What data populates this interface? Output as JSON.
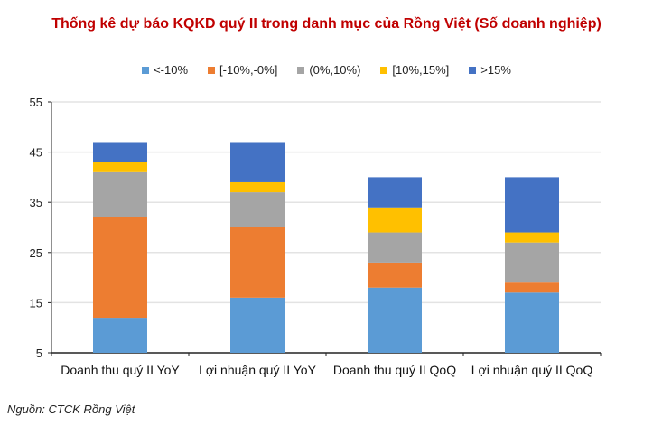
{
  "chart_data": {
    "type": "bar",
    "stacked": true,
    "title": "Thống kê dự báo KQKD quý II trong danh mục của Rồng Việt (Số doanh nghiệp)",
    "categories": [
      "Doanh thu quý II YoY",
      "Lợi nhuận quý II YoY",
      "Doanh thu quý II QoQ",
      "Lợi nhuận quý II QoQ"
    ],
    "series": [
      {
        "name": "<-10%",
        "color": "#5b9bd5",
        "values": [
          12,
          16,
          18,
          17
        ]
      },
      {
        "name": "[-10%,-0%]",
        "color": "#ed7d31",
        "values": [
          20,
          14,
          5,
          2
        ]
      },
      {
        "name": "(0%,10%)",
        "color": "#a5a5a5",
        "values": [
          9,
          7,
          6,
          8
        ]
      },
      {
        "name": "[10%,15%]",
        "color": "#ffc000",
        "values": [
          2,
          2,
          5,
          2
        ]
      },
      {
        "name": ">15%",
        "color": "#4472c4",
        "values": [
          4,
          8,
          6,
          11
        ]
      }
    ],
    "ylim": [
      5,
      55
    ],
    "yticks": [
      5,
      15,
      25,
      35,
      45,
      55
    ],
    "grid": true,
    "legend_position": "top",
    "xlabel": "",
    "ylabel": ""
  },
  "source": "Nguồn: CTCK Rồng Việt"
}
